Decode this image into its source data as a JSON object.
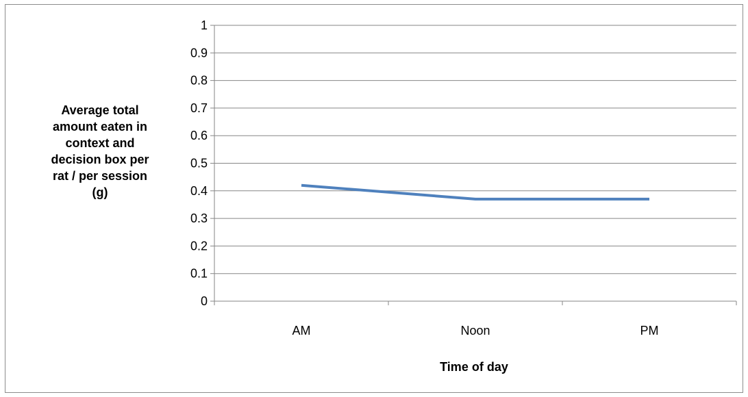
{
  "chart_data": {
    "type": "line",
    "title": "",
    "xlabel": "Time of day",
    "ylabel_lines": [
      "Average total",
      "amount eaten in",
      "context and",
      "decision box per",
      "rat / per session",
      "(g)"
    ],
    "categories": [
      "AM",
      "Noon",
      "PM"
    ],
    "series": [
      {
        "values": [
          0.42,
          0.37,
          0.37
        ]
      }
    ],
    "ylim": [
      0,
      1
    ],
    "y_ticks": [
      "0",
      "0.1",
      "0.2",
      "0.3",
      "0.4",
      "0.5",
      "0.6",
      "0.7",
      "0.8",
      "0.9",
      "1"
    ],
    "grid": true,
    "legend": "none",
    "colors": {
      "line": "#4f81bd",
      "grid": "#868686",
      "axis": "#868686",
      "frame": "#8c8c8c"
    }
  }
}
